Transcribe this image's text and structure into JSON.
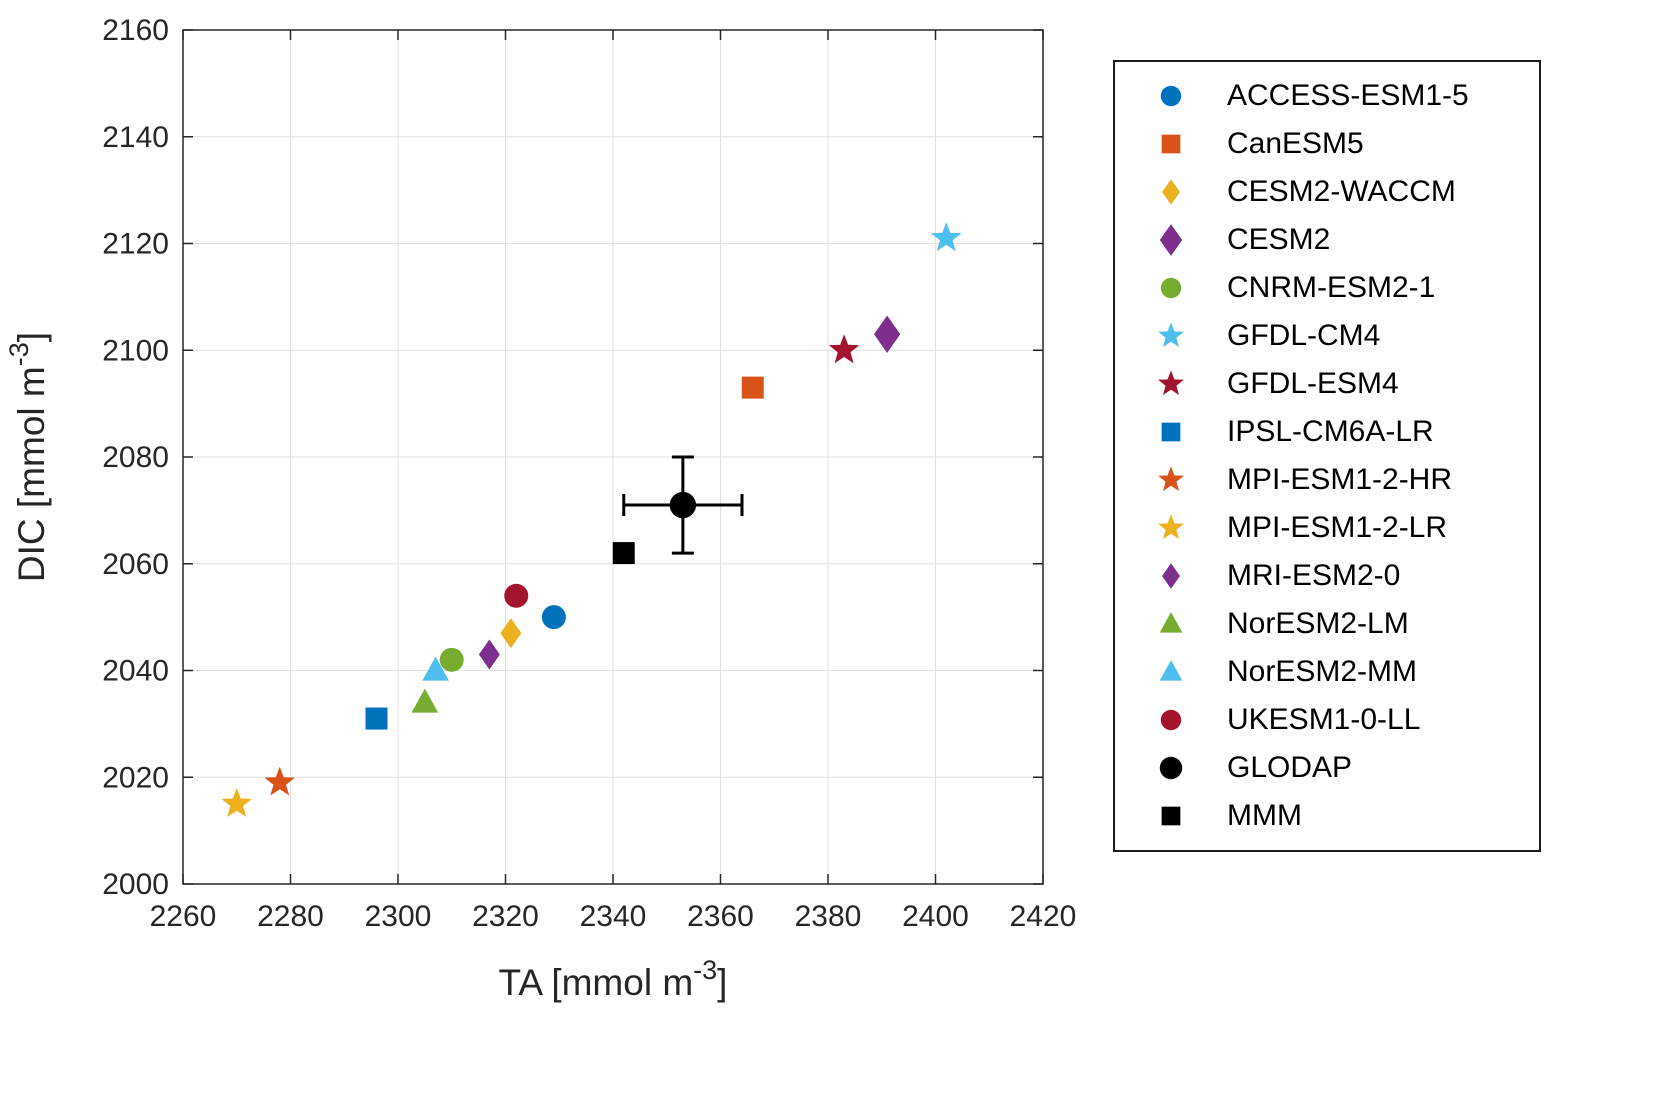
{
  "figure": {
    "background": "#FFFFFF"
  },
  "chart_data": {
    "type": "scatter",
    "title": "",
    "xlabel": {
      "prefix": "TA [mmol m",
      "sup": "-3",
      "suffix": "]"
    },
    "ylabel": {
      "prefix": "DIC [mmol m",
      "sup": "-3",
      "suffix": "]"
    },
    "xlim": [
      2260,
      2420
    ],
    "ylim": [
      2000,
      2160
    ],
    "xticks": [
      2260,
      2280,
      2300,
      2320,
      2340,
      2360,
      2380,
      2400,
      2420
    ],
    "yticks": [
      2000,
      2020,
      2040,
      2060,
      2080,
      2100,
      2120,
      2140,
      2160
    ],
    "grid": true,
    "legend_position": "outside-right",
    "colors": {
      "axis": "#262626",
      "grid": "#E0E0E0",
      "error_bar": "#000000"
    },
    "series": [
      {
        "name": "ACCESS-ESM1-5",
        "marker": "circle",
        "color": "#0072BD",
        "x": 2329,
        "y": 2050
      },
      {
        "name": "CanESM5",
        "marker": "square",
        "color": "#D95319",
        "x": 2366,
        "y": 2093
      },
      {
        "name": "CESM2-WACCM",
        "marker": "diamond",
        "color": "#EDB120",
        "x": 2321,
        "y": 2047
      },
      {
        "name": "CESM2",
        "marker": "diamond",
        "color": "#7E2F8E",
        "x": 2391,
        "y": 2103,
        "size": 1.25
      },
      {
        "name": "CNRM-ESM2-1",
        "marker": "circle",
        "color": "#77AC30",
        "x": 2310,
        "y": 2042
      },
      {
        "name": "GFDL-CM4",
        "marker": "star",
        "color": "#4DBEEE",
        "x": 2402,
        "y": 2121
      },
      {
        "name": "GFDL-ESM4",
        "marker": "star",
        "color": "#A2142F",
        "x": 2383,
        "y": 2100
      },
      {
        "name": "IPSL-CM6A-LR",
        "marker": "square",
        "color": "#0072BD",
        "x": 2296,
        "y": 2031
      },
      {
        "name": "MPI-ESM1-2-HR",
        "marker": "star",
        "color": "#D95319",
        "x": 2278,
        "y": 2019
      },
      {
        "name": "MPI-ESM1-2-LR",
        "marker": "star",
        "color": "#EDB120",
        "x": 2270,
        "y": 2015
      },
      {
        "name": "MRI-ESM2-0",
        "marker": "diamond",
        "color": "#7E2F8E",
        "x": 2317,
        "y": 2043
      },
      {
        "name": "NorESM2-LM",
        "marker": "triangle",
        "color": "#77AC30",
        "x": 2305,
        "y": 2034
      },
      {
        "name": "NorESM2-MM",
        "marker": "triangle",
        "color": "#4DBEEE",
        "x": 2307,
        "y": 2040
      },
      {
        "name": "UKESM1-0-LL",
        "marker": "circle",
        "color": "#A2142F",
        "x": 2322,
        "y": 2054
      },
      {
        "name": "GLODAP",
        "marker": "circle",
        "color": "#000000",
        "x": 2353,
        "y": 2071,
        "size": 1.1,
        "xerr": 11,
        "yerr": 9
      },
      {
        "name": "MMM",
        "marker": "square",
        "color": "#000000",
        "x": 2342,
        "y": 2062
      }
    ]
  }
}
